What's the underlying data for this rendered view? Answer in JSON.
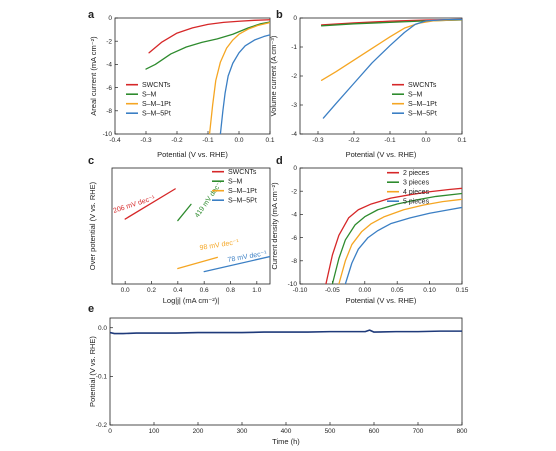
{
  "colors": {
    "swcnts": "#d62728",
    "s_m": "#2e8b2e",
    "s_m_1pt": "#f5a623",
    "s_m_5pt": "#3b7fc4",
    "pieces2": "#d62728",
    "pieces3": "#2e8b2e",
    "pieces4": "#f5a623",
    "pieces5": "#3b7fc4",
    "e_line": "#1f3a7a"
  },
  "chart_data": [
    {
      "id": "a",
      "type": "line",
      "panel_label": "a",
      "xlabel": "Potential (V vs. RHE)",
      "ylabel": "Areal current (mA cm⁻²)",
      "xlim": [
        -0.4,
        0.1
      ],
      "ylim": [
        -10,
        0
      ],
      "xticks": [
        -0.4,
        -0.3,
        -0.2,
        -0.1,
        0.0,
        0.1
      ],
      "xtick_labels": [
        "-0.4",
        "-0.3",
        "-0.2",
        "-0.1",
        "0.0",
        "0.1"
      ],
      "yticks": [
        -10,
        -8,
        -6,
        -4,
        -2,
        0
      ],
      "ytick_labels": [
        "-10",
        "-8",
        "-6",
        "-4",
        "-2",
        "0"
      ],
      "legend_position": "bottom-left",
      "series": [
        {
          "name": "SWCNTs",
          "color_key": "swcnts",
          "points": [
            [
              -0.29,
              -3.0
            ],
            [
              -0.25,
              -2.1
            ],
            [
              -0.2,
              -1.3
            ],
            [
              -0.15,
              -0.85
            ],
            [
              -0.1,
              -0.55
            ],
            [
              -0.05,
              -0.38
            ],
            [
              0.0,
              -0.28
            ],
            [
              0.05,
              -0.2
            ],
            [
              0.1,
              -0.15
            ]
          ]
        },
        {
          "name": "S–M",
          "color_key": "s_m",
          "points": [
            [
              -0.3,
              -4.4
            ],
            [
              -0.27,
              -4.0
            ],
            [
              -0.22,
              -3.1
            ],
            [
              -0.17,
              -2.5
            ],
            [
              -0.12,
              -2.1
            ],
            [
              -0.07,
              -1.8
            ],
            [
              -0.02,
              -1.4
            ],
            [
              0.03,
              -0.85
            ],
            [
              0.07,
              -0.5
            ],
            [
              0.1,
              -0.35
            ]
          ]
        },
        {
          "name": "S–M–1Pt",
          "color_key": "s_m_1pt",
          "points": [
            [
              -0.095,
              -10
            ],
            [
              -0.085,
              -7.5
            ],
            [
              -0.075,
              -5.4
            ],
            [
              -0.06,
              -3.8
            ],
            [
              -0.04,
              -2.6
            ],
            [
              -0.02,
              -1.9
            ],
            [
              0.0,
              -1.4
            ],
            [
              0.03,
              -0.95
            ],
            [
              0.06,
              -0.65
            ],
            [
              0.1,
              -0.4
            ]
          ]
        },
        {
          "name": "S–M–5Pt",
          "color_key": "s_m_5pt",
          "points": [
            [
              -0.06,
              -10
            ],
            [
              -0.052,
              -8.0
            ],
            [
              -0.045,
              -6.5
            ],
            [
              -0.035,
              -5.0
            ],
            [
              -0.02,
              -3.9
            ],
            [
              0.0,
              -3.0
            ],
            [
              0.02,
              -2.4
            ],
            [
              0.05,
              -1.9
            ],
            [
              0.08,
              -1.6
            ],
            [
              0.1,
              -1.45
            ]
          ]
        }
      ]
    },
    {
      "id": "b",
      "type": "line",
      "panel_label": "b",
      "xlabel": "Potential (V vs. RHE)",
      "ylabel": "Volume current (A cm⁻³)",
      "xlim": [
        -0.35,
        0.1
      ],
      "ylim": [
        -4,
        0
      ],
      "xticks": [
        -0.3,
        -0.2,
        -0.1,
        0.0,
        0.1
      ],
      "xtick_labels": [
        "-0.3",
        "-0.2",
        "-0.1",
        "0.0",
        "0.1"
      ],
      "yticks": [
        -4,
        -3,
        -2,
        -1,
        0
      ],
      "ytick_labels": [
        "-4",
        "-3",
        "-2",
        "-1",
        "0"
      ],
      "legend_position": "bottom-right",
      "series": [
        {
          "name": "SWCNTs",
          "color_key": "swcnts",
          "points": [
            [
              -0.29,
              -0.24
            ],
            [
              -0.2,
              -0.17
            ],
            [
              -0.1,
              -0.11
            ],
            [
              0.0,
              -0.07
            ],
            [
              0.1,
              -0.05
            ]
          ]
        },
        {
          "name": "S–M",
          "color_key": "s_m",
          "points": [
            [
              -0.29,
              -0.27
            ],
            [
              -0.2,
              -0.2
            ],
            [
              -0.1,
              -0.15
            ],
            [
              0.0,
              -0.1
            ],
            [
              0.1,
              -0.07
            ]
          ]
        },
        {
          "name": "S–M–1Pt",
          "color_key": "s_m_1pt",
          "points": [
            [
              -0.29,
              -2.15
            ],
            [
              -0.25,
              -1.85
            ],
            [
              -0.2,
              -1.45
            ],
            [
              -0.15,
              -1.05
            ],
            [
              -0.1,
              -0.65
            ],
            [
              -0.06,
              -0.35
            ],
            [
              -0.02,
              -0.18
            ],
            [
              0.02,
              -0.1
            ],
            [
              0.1,
              -0.06
            ]
          ]
        },
        {
          "name": "S–M–5Pt",
          "color_key": "s_m_5pt",
          "points": [
            [
              -0.285,
              -3.45
            ],
            [
              -0.25,
              -2.95
            ],
            [
              -0.2,
              -2.25
            ],
            [
              -0.15,
              -1.55
            ],
            [
              -0.1,
              -0.95
            ],
            [
              -0.06,
              -0.5
            ],
            [
              -0.03,
              -0.22
            ],
            [
              0.0,
              -0.1
            ],
            [
              0.05,
              -0.06
            ],
            [
              0.1,
              -0.05
            ]
          ]
        }
      ]
    },
    {
      "id": "c",
      "type": "line",
      "panel_label": "c",
      "xlabel": "Log|j| (mA cm⁻²)|",
      "ylabel": "Over potential (V vs. RHE)",
      "xlim": [
        -0.1,
        1.1
      ],
      "ylim": [
        0,
        0.3
      ],
      "xticks": [
        0.0,
        0.2,
        0.4,
        0.6,
        0.8,
        1.0
      ],
      "xtick_labels": [
        "0.0",
        "0.2",
        "0.4",
        "0.6",
        "0.8",
        "1.0"
      ],
      "yticks": [],
      "ytick_labels": [],
      "legend_position": "top-right",
      "series": [
        {
          "name": "SWCNTs",
          "color_key": "swcnts",
          "slope_label": "206 mV dec⁻¹",
          "points": [
            [
              0.0,
              0.168
            ],
            [
              0.38,
              0.246
            ]
          ]
        },
        {
          "name": "S–M",
          "color_key": "s_m",
          "slope_label": "419 mV dec⁻¹",
          "points": [
            [
              0.4,
              0.164
            ],
            [
              0.5,
              0.206
            ]
          ]
        },
        {
          "name": "S–M–1Pt",
          "color_key": "s_m_1pt",
          "slope_label": "98 mV dec⁻¹",
          "points": [
            [
              0.4,
              0.04
            ],
            [
              0.7,
              0.069
            ]
          ]
        },
        {
          "name": "S–M–5Pt",
          "color_key": "s_m_5pt",
          "slope_label": "78 mV dec⁻¹",
          "points": [
            [
              0.6,
              0.032
            ],
            [
              1.1,
              0.071
            ]
          ]
        }
      ]
    },
    {
      "id": "d",
      "type": "line",
      "panel_label": "d",
      "xlabel": "Potential (V vs. RHE)",
      "ylabel": "Current density (mA cm⁻²)",
      "xlim": [
        -0.1,
        0.15
      ],
      "ylim": [
        -10,
        0
      ],
      "xticks": [
        -0.1,
        -0.05,
        0.0,
        0.05,
        0.1,
        0.15
      ],
      "xtick_labels": [
        "-0.10",
        "-0.05",
        "0.00",
        "0.05",
        "0.10",
        "0.15"
      ],
      "yticks": [
        -10,
        -8,
        -6,
        -4,
        -2,
        0
      ],
      "ytick_labels": [
        "-10",
        "-8",
        "-6",
        "-4",
        "-2",
        "0"
      ],
      "legend_position": "top-right",
      "series": [
        {
          "name": "2 pieces",
          "color_key": "pieces2",
          "points": [
            [
              -0.06,
              -10
            ],
            [
              -0.05,
              -7.5
            ],
            [
              -0.04,
              -5.8
            ],
            [
              -0.025,
              -4.3
            ],
            [
              -0.01,
              -3.6
            ],
            [
              0.01,
              -3.1
            ],
            [
              0.04,
              -2.6
            ],
            [
              0.07,
              -2.3
            ],
            [
              0.1,
              -2.05
            ],
            [
              0.13,
              -1.85
            ],
            [
              0.15,
              -1.75
            ]
          ]
        },
        {
          "name": "3 pieces",
          "color_key": "pieces3",
          "points": [
            [
              -0.05,
              -10
            ],
            [
              -0.04,
              -7.8
            ],
            [
              -0.03,
              -6.2
            ],
            [
              -0.015,
              -4.9
            ],
            [
              0.0,
              -4.2
            ],
            [
              0.02,
              -3.6
            ],
            [
              0.05,
              -3.1
            ],
            [
              0.08,
              -2.75
            ],
            [
              0.11,
              -2.45
            ],
            [
              0.15,
              -2.2
            ]
          ]
        },
        {
          "name": "4 pieces",
          "color_key": "pieces4",
          "points": [
            [
              -0.04,
              -10
            ],
            [
              -0.03,
              -8.0
            ],
            [
              -0.02,
              -6.6
            ],
            [
              -0.005,
              -5.5
            ],
            [
              0.01,
              -4.8
            ],
            [
              0.03,
              -4.2
            ],
            [
              0.06,
              -3.6
            ],
            [
              0.09,
              -3.2
            ],
            [
              0.12,
              -2.9
            ],
            [
              0.15,
              -2.7
            ]
          ]
        },
        {
          "name": "5 pieces",
          "color_key": "pieces5",
          "points": [
            [
              -0.03,
              -10
            ],
            [
              -0.02,
              -8.2
            ],
            [
              -0.01,
              -7.0
            ],
            [
              0.005,
              -6.0
            ],
            [
              0.02,
              -5.4
            ],
            [
              0.04,
              -4.8
            ],
            [
              0.07,
              -4.3
            ],
            [
              0.1,
              -3.9
            ],
            [
              0.13,
              -3.6
            ],
            [
              0.15,
              -3.4
            ]
          ]
        }
      ]
    },
    {
      "id": "e",
      "type": "line",
      "panel_label": "e",
      "xlabel": "Time (h)",
      "ylabel": "Potential (V vs. RHE)",
      "xlim": [
        0,
        800
      ],
      "ylim": [
        -0.2,
        0.02
      ],
      "xticks": [
        0,
        100,
        200,
        300,
        400,
        500,
        600,
        700,
        800
      ],
      "xtick_labels": [
        "0",
        "100",
        "200",
        "300",
        "400",
        "500",
        "600",
        "700",
        "800"
      ],
      "yticks": [
        -0.2,
        -0.1,
        0.0
      ],
      "ytick_labels": [
        "-0.2",
        "-0.1",
        "0.0"
      ],
      "series": [
        {
          "name": "",
          "color_key": "e_line",
          "points": [
            [
              0,
              -0.01
            ],
            [
              10,
              -0.012
            ],
            [
              30,
              -0.012
            ],
            [
              60,
              -0.011
            ],
            [
              100,
              -0.011
            ],
            [
              150,
              -0.011
            ],
            [
              200,
              -0.01
            ],
            [
              250,
              -0.01
            ],
            [
              300,
              -0.01
            ],
            [
              350,
              -0.009
            ],
            [
              400,
              -0.009
            ],
            [
              450,
              -0.009
            ],
            [
              500,
              -0.008
            ],
            [
              550,
              -0.008
            ],
            [
              580,
              -0.008
            ],
            [
              590,
              -0.005
            ],
            [
              600,
              -0.009
            ],
            [
              650,
              -0.008
            ],
            [
              700,
              -0.008
            ],
            [
              750,
              -0.007
            ],
            [
              800,
              -0.007
            ]
          ]
        }
      ]
    }
  ]
}
